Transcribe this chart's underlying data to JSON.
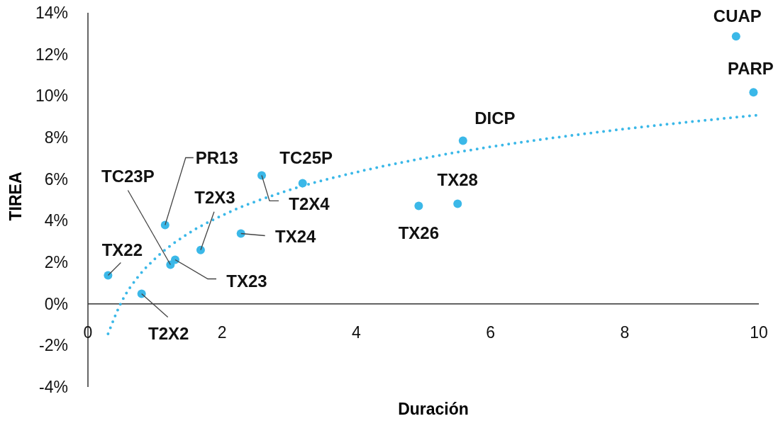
{
  "chart_data": {
    "type": "scatter",
    "xlabel": "Duración",
    "ylabel": "TIREA",
    "xlim": [
      0,
      10
    ],
    "xticks": [
      0,
      2,
      4,
      6,
      8,
      10
    ],
    "ylim": [
      -4,
      14
    ],
    "yticks": [
      {
        "value": -4,
        "label": "-4%"
      },
      {
        "value": -2,
        "label": "-2%"
      },
      {
        "value": 0,
        "label": "0%"
      },
      {
        "value": 2,
        "label": "2%"
      },
      {
        "value": 4,
        "label": "4%"
      },
      {
        "value": 6,
        "label": "6%"
      },
      {
        "value": 8,
        "label": "8%"
      },
      {
        "value": 10,
        "label": "10%"
      },
      {
        "value": 12,
        "label": "12%"
      },
      {
        "value": 14,
        "label": "14%"
      }
    ],
    "series": [
      {
        "marker": "circle",
        "color": "#3bb8e8",
        "x": [
          0.3,
          0.8,
          1.15,
          1.23,
          1.3,
          1.68,
          2.28,
          2.59,
          3.2,
          4.93,
          5.51,
          5.59,
          9.66,
          9.92
        ],
        "values": [
          1.37,
          0.48,
          3.79,
          1.88,
          2.12,
          2.59,
          3.38,
          6.18,
          5.8,
          4.71,
          4.81,
          7.85,
          12.87,
          10.17
        ]
      },
      {
        "type": "line",
        "color": "#3bb8e8",
        "line_style": "dotted",
        "x": [
          0.3,
          0.5,
          0.75,
          1,
          1.5,
          2,
          3,
          4,
          5,
          6,
          7,
          8,
          9,
          10
        ],
        "values": [
          -1.44,
          0.09,
          1.31,
          2.17,
          3.39,
          4.25,
          5.47,
          6.33,
          7.0,
          7.55,
          8.01,
          8.41,
          8.76,
          9.08
        ]
      }
    ],
    "annotations": [
      {
        "text": "TX22",
        "x": 0.3,
        "y": 1.37
      },
      {
        "text": "T2X2",
        "x": 0.8,
        "y": 0.48
      },
      {
        "text": "PR13",
        "x": 1.15,
        "y": 3.79
      },
      {
        "text": "TC23P",
        "x": 1.23,
        "y": 1.88
      },
      {
        "text": "TX23",
        "x": 1.3,
        "y": 2.12
      },
      {
        "text": "T2X3",
        "x": 1.68,
        "y": 2.59
      },
      {
        "text": "TX24",
        "x": 2.28,
        "y": 3.38
      },
      {
        "text": "T2X4",
        "x": 2.59,
        "y": 6.18
      },
      {
        "text": "TC25P",
        "x": 3.2,
        "y": 5.8
      },
      {
        "text": "TX26",
        "x": 4.93,
        "y": 4.71
      },
      {
        "text": "TX28",
        "x": 5.51,
        "y": 4.81
      },
      {
        "text": "DICP",
        "x": 5.59,
        "y": 7.85
      },
      {
        "text": "CUAP",
        "x": 9.66,
        "y": 12.87
      },
      {
        "text": "PARP",
        "x": 9.92,
        "y": 10.17
      }
    ]
  }
}
